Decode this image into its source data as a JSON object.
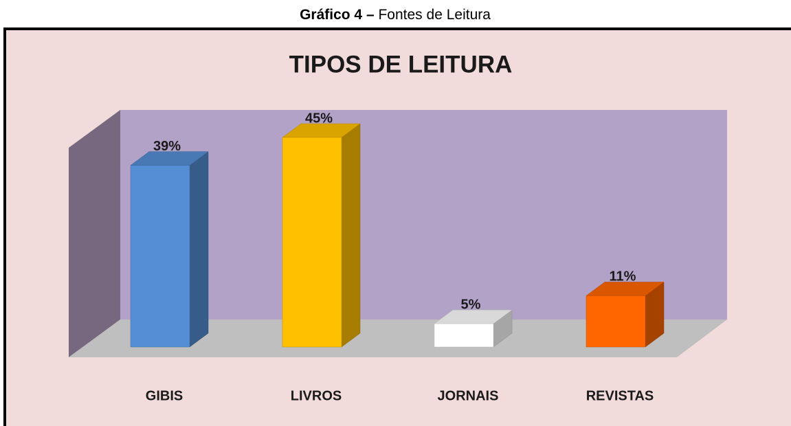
{
  "caption": {
    "label": "Gráfico 4 –",
    "text": "Fontes de Leitura"
  },
  "chart_data": {
    "type": "bar3d",
    "title": "TIPOS DE LEITURA",
    "categories": [
      "GIBIS",
      "LIVROS",
      "JORNAIS",
      "REVISTAS"
    ],
    "values": [
      39,
      45,
      5,
      11
    ],
    "value_labels": [
      "39%",
      "45%",
      "5%",
      "11%"
    ],
    "colors": [
      "#558ed5",
      "#ffc000",
      "#ffffff",
      "#ff6600"
    ]
  }
}
